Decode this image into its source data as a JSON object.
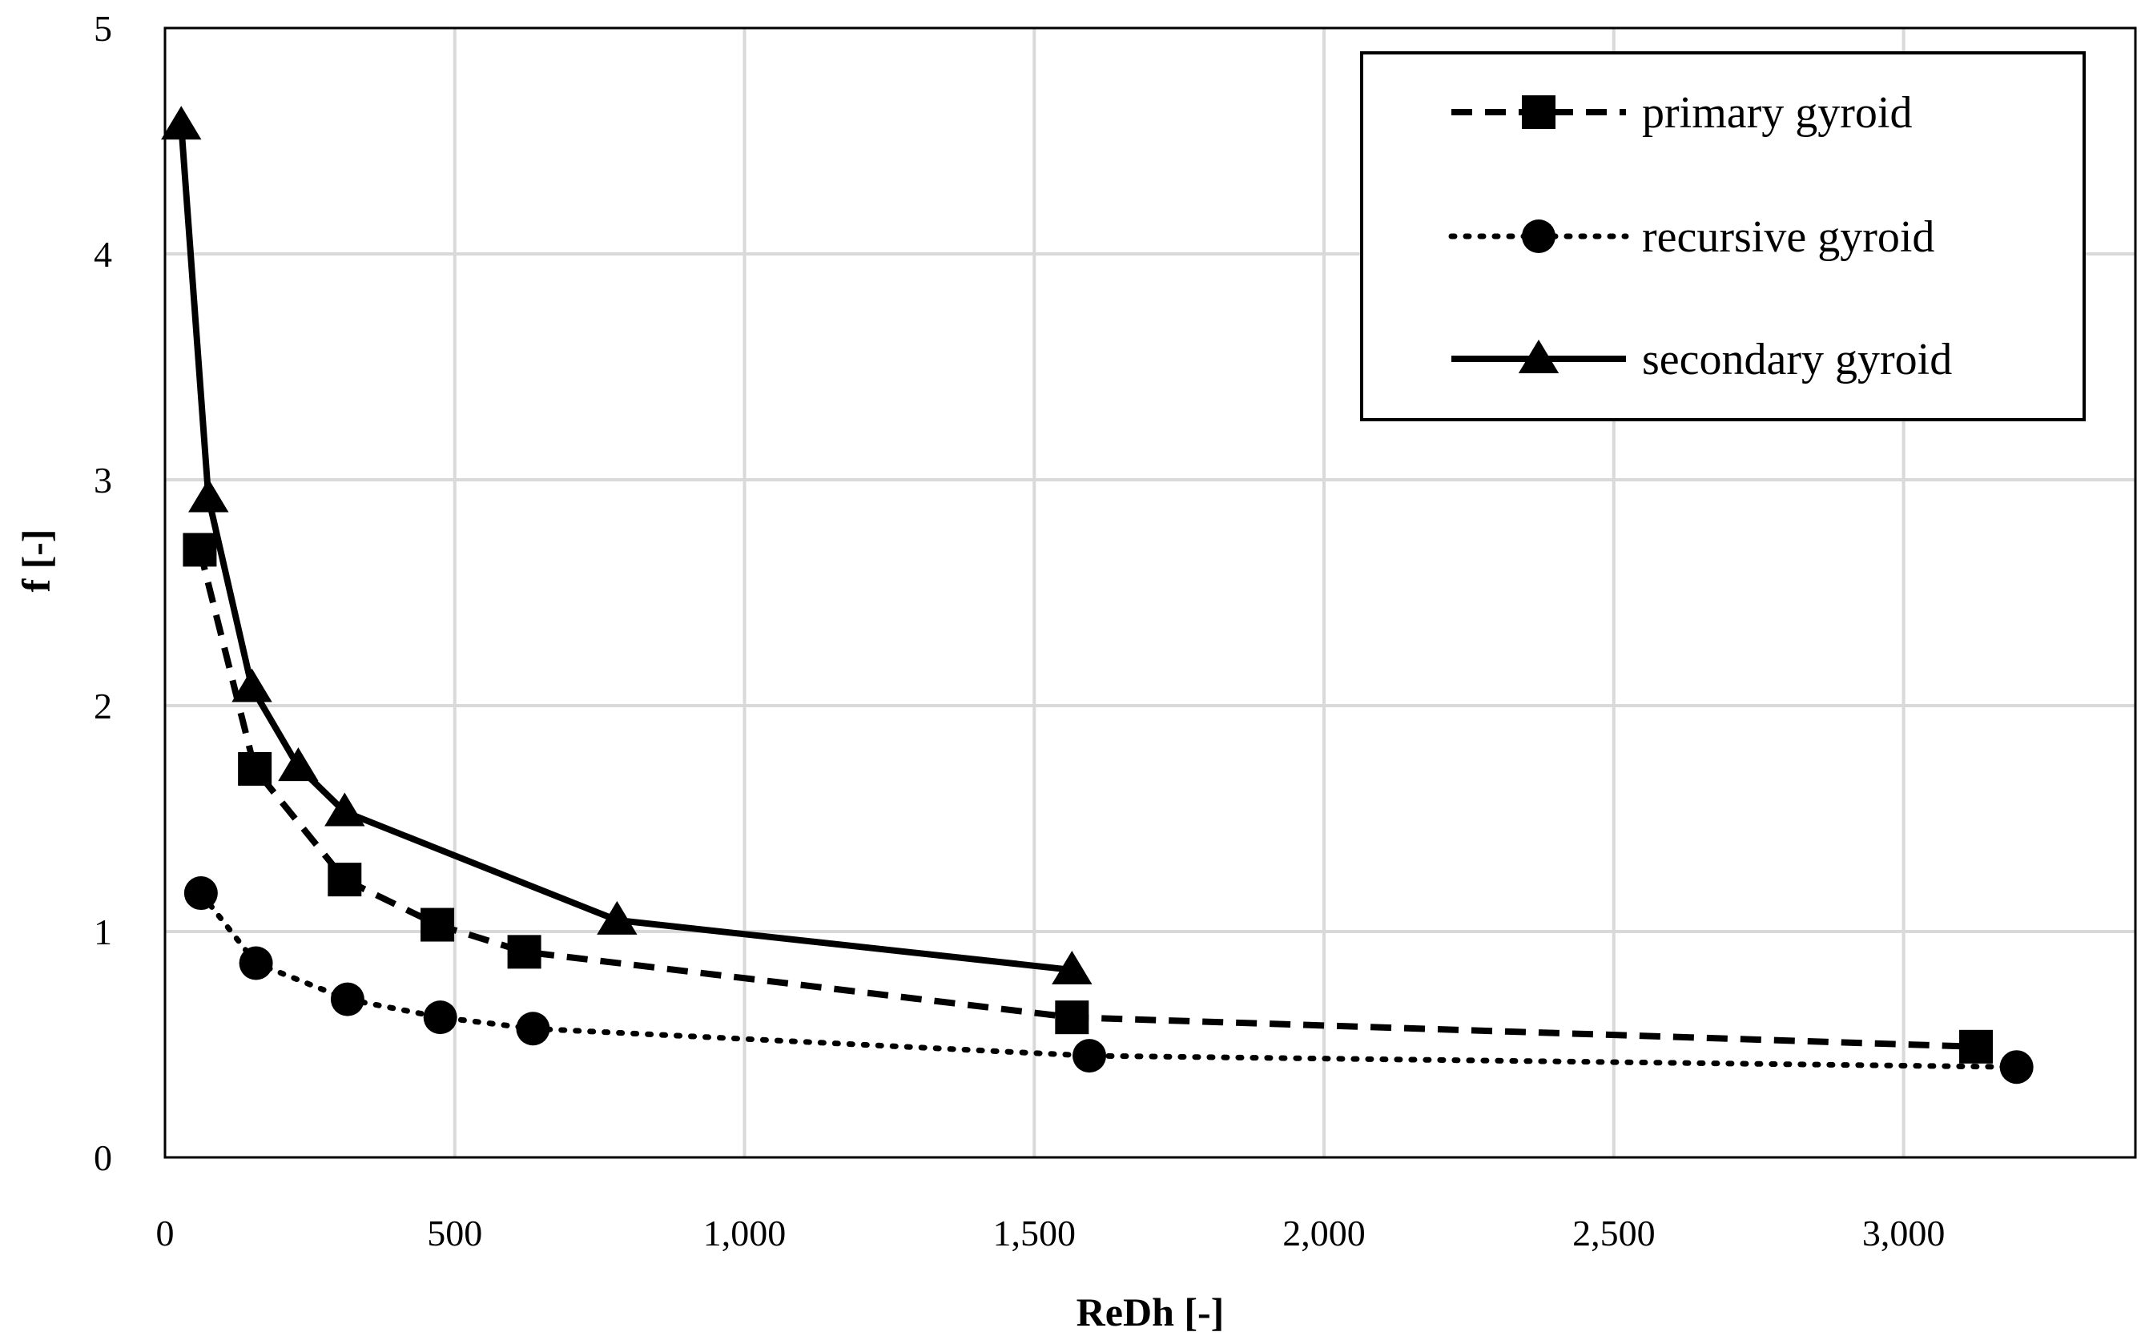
{
  "chart_data": {
    "type": "line",
    "title": "",
    "xlabel": "ReDh [-]",
    "ylabel": "f [-]",
    "xlim": [
      0,
      3400
    ],
    "ylim": [
      0,
      5
    ],
    "xticks": [
      0,
      500,
      1000,
      1500,
      2000,
      2500,
      3000
    ],
    "xtick_labels": [
      "0",
      "500",
      "1,000",
      "1,500",
      "2,000",
      "2,500",
      "3,000"
    ],
    "yticks": [
      0,
      1,
      2,
      3,
      4,
      5
    ],
    "ytick_labels": [
      "0",
      "1",
      "2",
      "3",
      "4",
      "5"
    ],
    "grid": true,
    "legend_position": "top-right",
    "series": [
      {
        "name": "primary gyroid",
        "line_style": "dashed",
        "marker": "square",
        "color": "#000000",
        "x": [
          60,
          155,
          310,
          470,
          620,
          1565,
          3125
        ],
        "y": [
          2.69,
          1.72,
          1.23,
          1.03,
          0.91,
          0.62,
          0.49
        ]
      },
      {
        "name": "recursive gyroid",
        "line_style": "dotted",
        "marker": "circle",
        "color": "#000000",
        "x": [
          62,
          157,
          315,
          475,
          635,
          1595,
          3195
        ],
        "y": [
          1.17,
          0.86,
          0.7,
          0.62,
          0.57,
          0.45,
          0.4
        ]
      },
      {
        "name": "secondary gyroid",
        "line_style": "solid",
        "marker": "triangle",
        "color": "#000000",
        "x": [
          28,
          75,
          150,
          230,
          310,
          780,
          1565
        ],
        "y": [
          4.57,
          2.92,
          2.08,
          1.73,
          1.53,
          1.05,
          0.83
        ]
      }
    ]
  }
}
